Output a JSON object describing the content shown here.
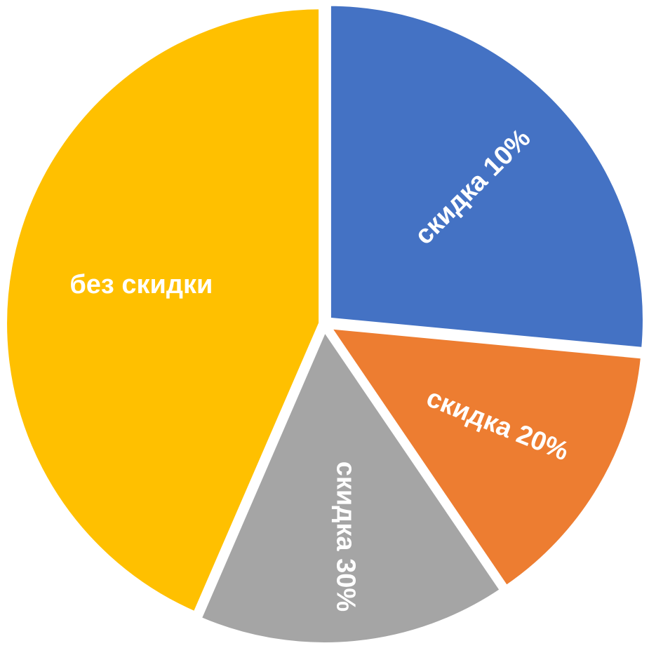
{
  "chart_data": {
    "type": "pie",
    "title": "",
    "categories": [
      "скидка 10%",
      "скидка 20%",
      "скидка 30%",
      "без скидки"
    ],
    "values": [
      26.5,
      14,
      16,
      43.5
    ],
    "colors": [
      "#4472C4",
      "#ED7D31",
      "#A5A5A5",
      "#FFC000"
    ],
    "start_angle_deg": 0,
    "direction": "clockwise",
    "data_labels": [
      "скидка 10%",
      "скидка 20%",
      "скидка 30%",
      "без скидки"
    ],
    "legend": "none"
  }
}
